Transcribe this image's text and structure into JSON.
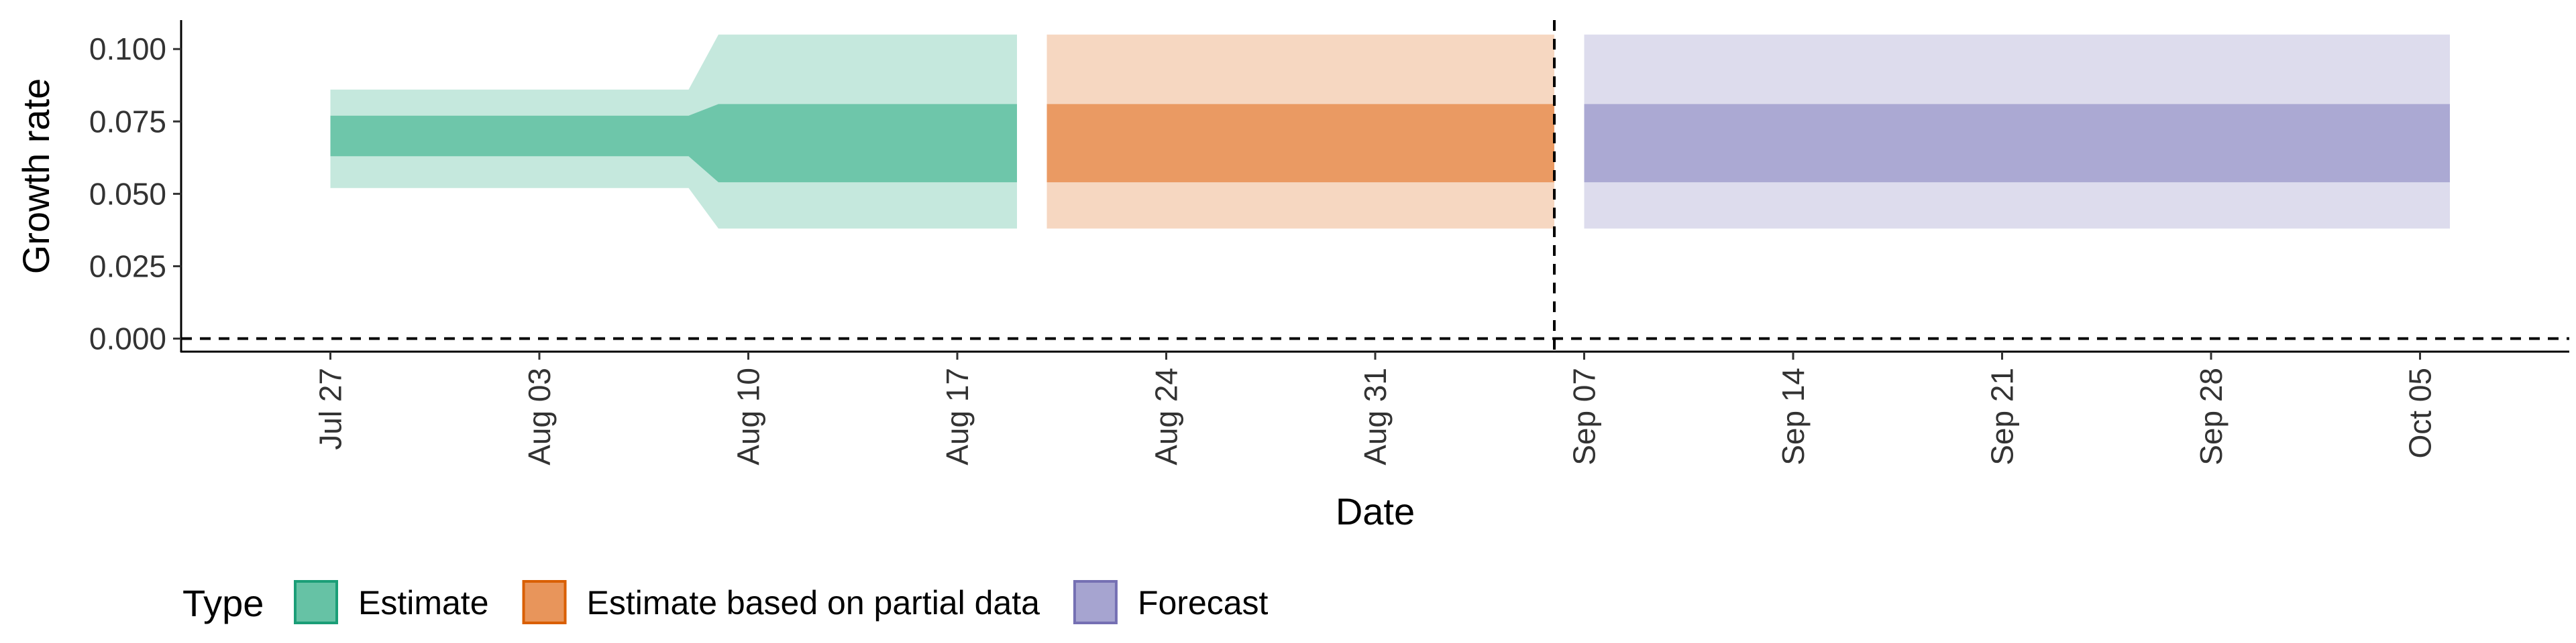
{
  "chart_data": {
    "type": "area",
    "title": "",
    "xlabel": "Date",
    "ylabel": "Growth rate",
    "xlim": [
      "2020-07-22",
      "2020-10-10"
    ],
    "ylim": [
      -0.0045,
      0.11
    ],
    "y_ticks": [
      0.0,
      0.025,
      0.05,
      0.075,
      0.1
    ],
    "y_tick_labels": [
      "0.000",
      "0.025",
      "0.050",
      "0.075",
      "0.100"
    ],
    "x_ticks": [
      "2020-07-27",
      "2020-08-03",
      "2020-08-10",
      "2020-08-17",
      "2020-08-24",
      "2020-08-31",
      "2020-09-07",
      "2020-09-14",
      "2020-09-21",
      "2020-09-28",
      "2020-10-05"
    ],
    "x_tick_labels": [
      "Jul 27",
      "Aug 03",
      "Aug 10",
      "Aug 17",
      "Aug 24",
      "Aug 31",
      "Sep 07",
      "Sep 14",
      "Sep 21",
      "Sep 28",
      "Oct 05"
    ],
    "grid": false,
    "legend": {
      "title": "Type",
      "position": "bottom-left",
      "entries": [
        "Estimate",
        "Estimate based on partial data",
        "Forecast"
      ]
    },
    "reference_lines": {
      "horizontal_y": 0.0,
      "vertical_x": "2020-09-06"
    },
    "series": [
      {
        "name": "Estimate",
        "color": "#66c2a5",
        "border_color": "#1b9e77",
        "x": [
          "2020-07-27",
          "2020-08-08",
          "2020-08-09",
          "2020-08-19"
        ],
        "outer_low": [
          0.052,
          0.052,
          0.038,
          0.038
        ],
        "inner_low": [
          0.063,
          0.063,
          0.054,
          0.054
        ],
        "inner_high": [
          0.077,
          0.077,
          0.081,
          0.081
        ],
        "outer_high": [
          0.086,
          0.086,
          0.105,
          0.105
        ]
      },
      {
        "name": "Estimate based on partial data",
        "color": "#e8955b",
        "border_color": "#d95f02",
        "x": [
          "2020-08-20",
          "2020-09-06"
        ],
        "outer_low": [
          0.038,
          0.038
        ],
        "inner_low": [
          0.054,
          0.054
        ],
        "inner_high": [
          0.081,
          0.081
        ],
        "outer_high": [
          0.105,
          0.105
        ]
      },
      {
        "name": "Forecast",
        "color": "#a6a4d0",
        "border_color": "#7570b3",
        "x": [
          "2020-09-07",
          "2020-10-06"
        ],
        "outer_low": [
          0.038,
          0.038
        ],
        "inner_low": [
          0.054,
          0.054
        ],
        "inner_high": [
          0.081,
          0.081
        ],
        "outer_high": [
          0.105,
          0.105
        ]
      }
    ]
  }
}
